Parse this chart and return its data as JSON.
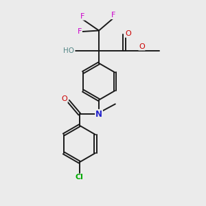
{
  "background_color": "#ebebeb",
  "bond_color": "#1a1a1a",
  "colors": {
    "F": "#cc00cc",
    "O": "#cc0000",
    "N": "#2222cc",
    "Cl": "#00aa00",
    "H": "#558888",
    "C": "#1a1a1a"
  },
  "figsize": [
    3.0,
    3.0
  ],
  "dpi": 100
}
